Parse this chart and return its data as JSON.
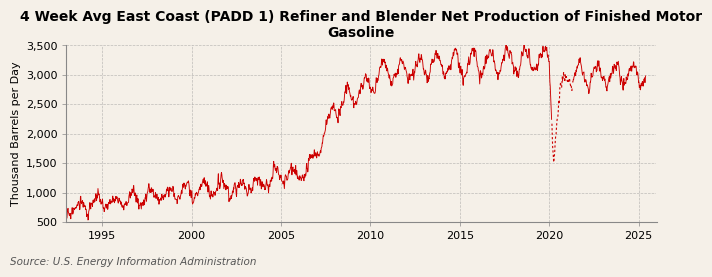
{
  "title": "4 Week Avg East Coast (PADD 1) Refiner and Blender Net Production of Finished Motor\nGasoline",
  "ylabel": "Thousand Barrels per Day",
  "source": "Source: U.S. Energy Information Administration",
  "line_color": "#cc0000",
  "background_color": "#f5f0e8",
  "grid_color": "#999999",
  "ylim": [
    500,
    3500
  ],
  "yticks": [
    500,
    1000,
    1500,
    2000,
    2500,
    3000,
    3500
  ],
  "ytick_labels": [
    "500",
    "1,000",
    "1,500",
    "2,000",
    "2,500",
    "3,000",
    "3,500"
  ],
  "xlim_start": 1993.0,
  "xlim_end": 2026.0,
  "xticks": [
    1995,
    2000,
    2005,
    2010,
    2015,
    2020,
    2025
  ],
  "title_fontsize": 10.0,
  "axis_fontsize": 8.0,
  "tick_fontsize": 8,
  "source_fontsize": 7.5,
  "dashed_region_start": 2020.15,
  "dashed_region_end": 2021.3,
  "seed": 17
}
